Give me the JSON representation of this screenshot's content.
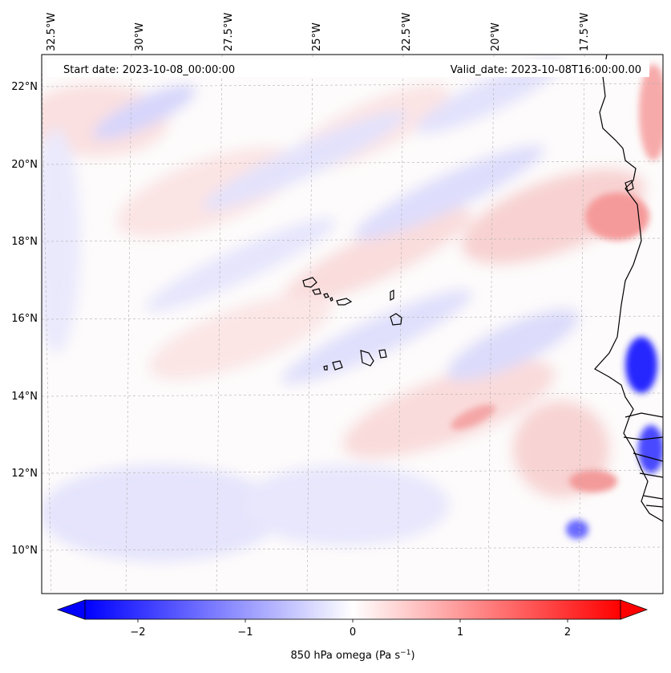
{
  "map": {
    "start_label": "Start date: 2023-10-08_00:00:00",
    "valid_label": "Valid_date: 2023-10-08T16:00:00.00",
    "lon_labels": [
      "32.5°W",
      "30°W",
      "27.5°W",
      "25°W",
      "22.5°W",
      "20°W",
      "17.5°W"
    ],
    "lat_labels": [
      "22°N",
      "20°N",
      "18°N",
      "16°N",
      "14°N",
      "12°N",
      "10°N"
    ],
    "gridlines": true,
    "coastline_color": "#000000"
  },
  "colorbar": {
    "label": "850 hPa omega (Pa s",
    "label_sup": "−1",
    "label_close": ")",
    "ticks": [
      "−2",
      "−1",
      "0",
      "1",
      "2"
    ],
    "range": [
      -2.7,
      2.7
    ],
    "extend": "both",
    "colormap": "bwr",
    "colors": {
      "low": "#0000ff",
      "mid": "#ffffff",
      "high": "#ff0000"
    }
  },
  "field": {
    "features": [
      {
        "kind": "positive",
        "name": "red band north of islands"
      },
      {
        "kind": "negative",
        "name": "blue streaks northwest"
      },
      {
        "kind": "negative",
        "name": "strong ascent near coast 14-15N"
      },
      {
        "kind": "positive",
        "name": "descent near coast 18-19N"
      }
    ]
  }
}
